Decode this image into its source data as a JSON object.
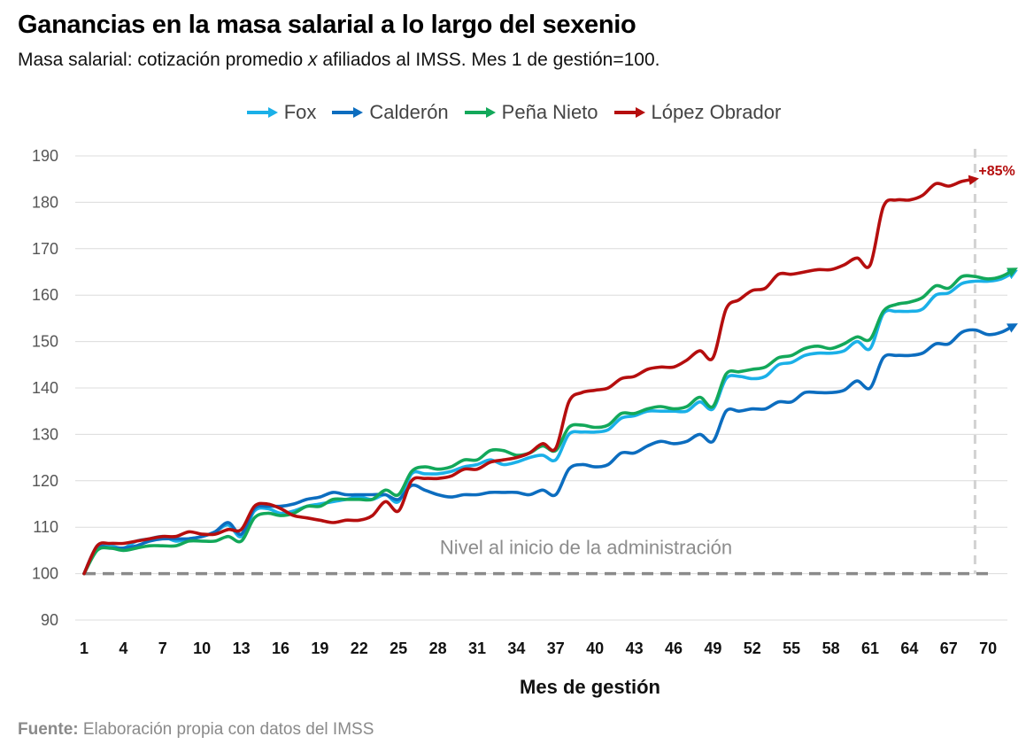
{
  "chart_data": {
    "type": "line",
    "title": "Ganancias en la masa salarial a lo largo del sexenio",
    "subtitle_before": "Masa salarial: cotización promedio",
    "subtitle_x": "x",
    "subtitle_after": " afiliados al IMSS. Mes 1 de gestión=100.",
    "xlabel": "Mes de gestión",
    "ylabel": "",
    "x_ticks": [
      "1",
      "4",
      "7",
      "10",
      "13",
      "16",
      "19",
      "22",
      "25",
      "28",
      "31",
      "34",
      "37",
      "40",
      "43",
      "46",
      "49",
      "52",
      "55",
      "58",
      "61",
      "64",
      "67",
      "70"
    ],
    "x_range": [
      1,
      72
    ],
    "y_ticks": [
      90,
      100,
      110,
      120,
      130,
      140,
      150,
      160,
      170,
      180,
      190
    ],
    "ylim": [
      90,
      190
    ],
    "grid": true,
    "legend_position": "top-center",
    "reference_line": {
      "y": 100,
      "label": "Nivel al inicio de la administración"
    },
    "vertical_marker_x": 69,
    "end_annotation": {
      "series": "López Obrador",
      "text": "+85%",
      "x": 69,
      "y": 185
    },
    "series": [
      {
        "name": "Fox",
        "color": "#1ab0e8",
        "points": [
          [
            1,
            100
          ],
          [
            2,
            106
          ],
          [
            3,
            106
          ],
          [
            4,
            105.5
          ],
          [
            5,
            107
          ],
          [
            6,
            107.5
          ],
          [
            7,
            108
          ],
          [
            8,
            107
          ],
          [
            9,
            107.5
          ],
          [
            10,
            108
          ],
          [
            11,
            109
          ],
          [
            12,
            110.5
          ],
          [
            13,
            108
          ],
          [
            14,
            113.5
          ],
          [
            15,
            114
          ],
          [
            16,
            113
          ],
          [
            17,
            113.5
          ],
          [
            18,
            114.5
          ],
          [
            19,
            115
          ],
          [
            20,
            115.5
          ],
          [
            21,
            116
          ],
          [
            22,
            116.5
          ],
          [
            23,
            116
          ],
          [
            24,
            117
          ],
          [
            25,
            115.5
          ],
          [
            26,
            121.5
          ],
          [
            27,
            121.5
          ],
          [
            28,
            121.5
          ],
          [
            29,
            122
          ],
          [
            30,
            123
          ],
          [
            31,
            123.5
          ],
          [
            32,
            124.5
          ],
          [
            33,
            123.5
          ],
          [
            34,
            124
          ],
          [
            35,
            125
          ],
          [
            36,
            125.5
          ],
          [
            37,
            124.5
          ],
          [
            38,
            130
          ],
          [
            39,
            130.5
          ],
          [
            40,
            130.5
          ],
          [
            41,
            131
          ],
          [
            42,
            133.5
          ],
          [
            43,
            134
          ],
          [
            44,
            135
          ],
          [
            45,
            135
          ],
          [
            46,
            135
          ],
          [
            47,
            135
          ],
          [
            48,
            137
          ],
          [
            49,
            135.5
          ],
          [
            50,
            142
          ],
          [
            51,
            142.5
          ],
          [
            52,
            142
          ],
          [
            53,
            142.5
          ],
          [
            54,
            145
          ],
          [
            55,
            145.5
          ],
          [
            56,
            147
          ],
          [
            57,
            147.5
          ],
          [
            58,
            147.5
          ],
          [
            59,
            148
          ],
          [
            60,
            150
          ],
          [
            61,
            148.5
          ],
          [
            62,
            156
          ],
          [
            63,
            156.5
          ],
          [
            64,
            156.5
          ],
          [
            65,
            157
          ],
          [
            66,
            160
          ],
          [
            67,
            160.5
          ],
          [
            68,
            162.5
          ],
          [
            69,
            163
          ],
          [
            70,
            163
          ],
          [
            71,
            163.5
          ],
          [
            72,
            165
          ]
        ]
      },
      {
        "name": "Calderón",
        "color": "#0c6dbf",
        "points": [
          [
            1,
            100
          ],
          [
            2,
            105.5
          ],
          [
            3,
            105.5
          ],
          [
            4,
            105.5
          ],
          [
            5,
            106
          ],
          [
            6,
            107
          ],
          [
            7,
            107.5
          ],
          [
            8,
            107.5
          ],
          [
            9,
            107.5
          ],
          [
            10,
            108
          ],
          [
            11,
            109
          ],
          [
            12,
            111
          ],
          [
            13,
            108.5
          ],
          [
            14,
            114
          ],
          [
            15,
            114.5
          ],
          [
            16,
            114.5
          ],
          [
            17,
            115
          ],
          [
            18,
            116
          ],
          [
            19,
            116.5
          ],
          [
            20,
            117.5
          ],
          [
            21,
            117
          ],
          [
            22,
            117
          ],
          [
            23,
            117
          ],
          [
            24,
            117
          ],
          [
            25,
            116
          ],
          [
            26,
            119
          ],
          [
            27,
            118
          ],
          [
            28,
            117
          ],
          [
            29,
            116.5
          ],
          [
            30,
            117
          ],
          [
            31,
            117
          ],
          [
            32,
            117.5
          ],
          [
            33,
            117.5
          ],
          [
            34,
            117.5
          ],
          [
            35,
            117
          ],
          [
            36,
            118
          ],
          [
            37,
            117
          ],
          [
            38,
            122.5
          ],
          [
            39,
            123.5
          ],
          [
            40,
            123
          ],
          [
            41,
            123.5
          ],
          [
            42,
            126
          ],
          [
            43,
            126
          ],
          [
            44,
            127.5
          ],
          [
            45,
            128.5
          ],
          [
            46,
            128
          ],
          [
            47,
            128.5
          ],
          [
            48,
            130
          ],
          [
            49,
            128.5
          ],
          [
            50,
            135
          ],
          [
            51,
            135
          ],
          [
            52,
            135.5
          ],
          [
            53,
            135.5
          ],
          [
            54,
            137
          ],
          [
            55,
            137
          ],
          [
            56,
            139
          ],
          [
            57,
            139
          ],
          [
            58,
            139
          ],
          [
            59,
            139.5
          ],
          [
            60,
            141.5
          ],
          [
            61,
            140
          ],
          [
            62,
            146.5
          ],
          [
            63,
            147
          ],
          [
            64,
            147
          ],
          [
            65,
            147.5
          ],
          [
            66,
            149.5
          ],
          [
            67,
            149.5
          ],
          [
            68,
            152
          ],
          [
            69,
            152.5
          ],
          [
            70,
            151.5
          ],
          [
            71,
            152
          ],
          [
            72,
            153.5
          ]
        ]
      },
      {
        "name": "Peña Nieto",
        "color": "#13a85a",
        "points": [
          [
            1,
            100
          ],
          [
            2,
            105
          ],
          [
            3,
            105.5
          ],
          [
            4,
            105
          ],
          [
            5,
            105.5
          ],
          [
            6,
            106
          ],
          [
            7,
            106
          ],
          [
            8,
            106
          ],
          [
            9,
            107
          ],
          [
            10,
            107
          ],
          [
            11,
            107
          ],
          [
            12,
            108
          ],
          [
            13,
            107
          ],
          [
            14,
            112
          ],
          [
            15,
            113
          ],
          [
            16,
            112.5
          ],
          [
            17,
            113
          ],
          [
            18,
            114.5
          ],
          [
            19,
            114.5
          ],
          [
            20,
            116
          ],
          [
            21,
            116
          ],
          [
            22,
            116
          ],
          [
            23,
            116
          ],
          [
            24,
            118
          ],
          [
            25,
            117
          ],
          [
            26,
            122
          ],
          [
            27,
            123
          ],
          [
            28,
            122.5
          ],
          [
            29,
            123
          ],
          [
            30,
            124.5
          ],
          [
            31,
            124.5
          ],
          [
            32,
            126.5
          ],
          [
            33,
            126.5
          ],
          [
            34,
            125.5
          ],
          [
            35,
            126
          ],
          [
            36,
            127.5
          ],
          [
            37,
            126.5
          ],
          [
            38,
            131.5
          ],
          [
            39,
            132
          ],
          [
            40,
            131.5
          ],
          [
            41,
            132
          ],
          [
            42,
            134.5
          ],
          [
            43,
            134.5
          ],
          [
            44,
            135.5
          ],
          [
            45,
            136
          ],
          [
            46,
            135.5
          ],
          [
            47,
            136
          ],
          [
            48,
            138
          ],
          [
            49,
            136
          ],
          [
            50,
            143
          ],
          [
            51,
            143.5
          ],
          [
            52,
            144
          ],
          [
            53,
            144.5
          ],
          [
            54,
            146.5
          ],
          [
            55,
            147
          ],
          [
            56,
            148.5
          ],
          [
            57,
            149
          ],
          [
            58,
            148.5
          ],
          [
            59,
            149.5
          ],
          [
            60,
            151
          ],
          [
            61,
            150.5
          ],
          [
            62,
            156.5
          ],
          [
            63,
            158
          ],
          [
            64,
            158.5
          ],
          [
            65,
            159.5
          ],
          [
            66,
            162
          ],
          [
            67,
            161.5
          ],
          [
            68,
            164
          ],
          [
            69,
            164
          ],
          [
            70,
            163.5
          ],
          [
            71,
            164
          ],
          [
            72,
            165.5
          ]
        ]
      },
      {
        "name": "López Obrador",
        "color": "#b50e0e",
        "points": [
          [
            1,
            100
          ],
          [
            2,
            106
          ],
          [
            3,
            106.5
          ],
          [
            4,
            106.5
          ],
          [
            5,
            107
          ],
          [
            6,
            107.5
          ],
          [
            7,
            108
          ],
          [
            8,
            108
          ],
          [
            9,
            109
          ],
          [
            10,
            108.5
          ],
          [
            11,
            108.5
          ],
          [
            12,
            109.5
          ],
          [
            13,
            109.5
          ],
          [
            14,
            114.5
          ],
          [
            15,
            115
          ],
          [
            16,
            114
          ],
          [
            17,
            112.5
          ],
          [
            18,
            112
          ],
          [
            19,
            111.5
          ],
          [
            20,
            111
          ],
          [
            21,
            111.5
          ],
          [
            22,
            111.5
          ],
          [
            23,
            112.5
          ],
          [
            24,
            115.5
          ],
          [
            25,
            113.5
          ],
          [
            26,
            120
          ],
          [
            27,
            120.5
          ],
          [
            28,
            120.5
          ],
          [
            29,
            121
          ],
          [
            30,
            122.5
          ],
          [
            31,
            122.5
          ],
          [
            32,
            124
          ],
          [
            33,
            124.5
          ],
          [
            34,
            125
          ],
          [
            35,
            126
          ],
          [
            36,
            128
          ],
          [
            37,
            127
          ],
          [
            38,
            137
          ],
          [
            39,
            139
          ],
          [
            40,
            139.5
          ],
          [
            41,
            140
          ],
          [
            42,
            142
          ],
          [
            43,
            142.5
          ],
          [
            44,
            144
          ],
          [
            45,
            144.5
          ],
          [
            46,
            144.5
          ],
          [
            47,
            146
          ],
          [
            48,
            148
          ],
          [
            49,
            146.5
          ],
          [
            50,
            157
          ],
          [
            51,
            159
          ],
          [
            52,
            161
          ],
          [
            53,
            161.5
          ],
          [
            54,
            164.5
          ],
          [
            55,
            164.5
          ],
          [
            56,
            165
          ],
          [
            57,
            165.5
          ],
          [
            58,
            165.5
          ],
          [
            59,
            166.5
          ],
          [
            60,
            168
          ],
          [
            61,
            166.5
          ],
          [
            62,
            179
          ],
          [
            63,
            180.5
          ],
          [
            64,
            180.5
          ],
          [
            65,
            181.5
          ],
          [
            66,
            184
          ],
          [
            67,
            183.5
          ],
          [
            68,
            184.5
          ],
          [
            69,
            185
          ]
        ]
      }
    ]
  },
  "source": {
    "label": "Fuente:",
    "text": " Elaboración propia con datos del IMSS"
  }
}
